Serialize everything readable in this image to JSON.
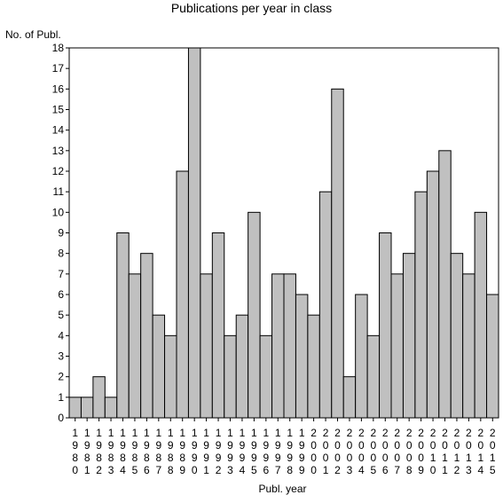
{
  "chart_data": {
    "type": "bar",
    "title": "Publications per year in class",
    "ylabel": "No. of Publ.",
    "xlabel": "Publ. year",
    "ylim": [
      0,
      18
    ],
    "yticks": [
      0,
      1,
      2,
      3,
      4,
      5,
      6,
      7,
      8,
      9,
      10,
      11,
      12,
      13,
      14,
      15,
      16,
      17,
      18
    ],
    "categories": [
      "1980",
      "1981",
      "1982",
      "1983",
      "1984",
      "1985",
      "1986",
      "1987",
      "1988",
      "1989",
      "1990",
      "1991",
      "1992",
      "1993",
      "1994",
      "1995",
      "1996",
      "1997",
      "1998",
      "1999",
      "2000",
      "2001",
      "2002",
      "2003",
      "2004",
      "2005",
      "2006",
      "2007",
      "2008",
      "2009",
      "2010",
      "2011",
      "2012",
      "2013",
      "2014",
      "2015"
    ],
    "values": [
      1,
      1,
      2,
      1,
      9,
      7,
      8,
      5,
      4,
      12,
      18,
      7,
      9,
      4,
      5,
      10,
      4,
      7,
      7,
      6,
      5,
      11,
      16,
      2,
      6,
      4,
      9,
      7,
      8,
      11,
      12,
      13,
      8,
      7,
      10,
      6
    ],
    "bar_color": "#c0c0c0",
    "grid": false
  }
}
